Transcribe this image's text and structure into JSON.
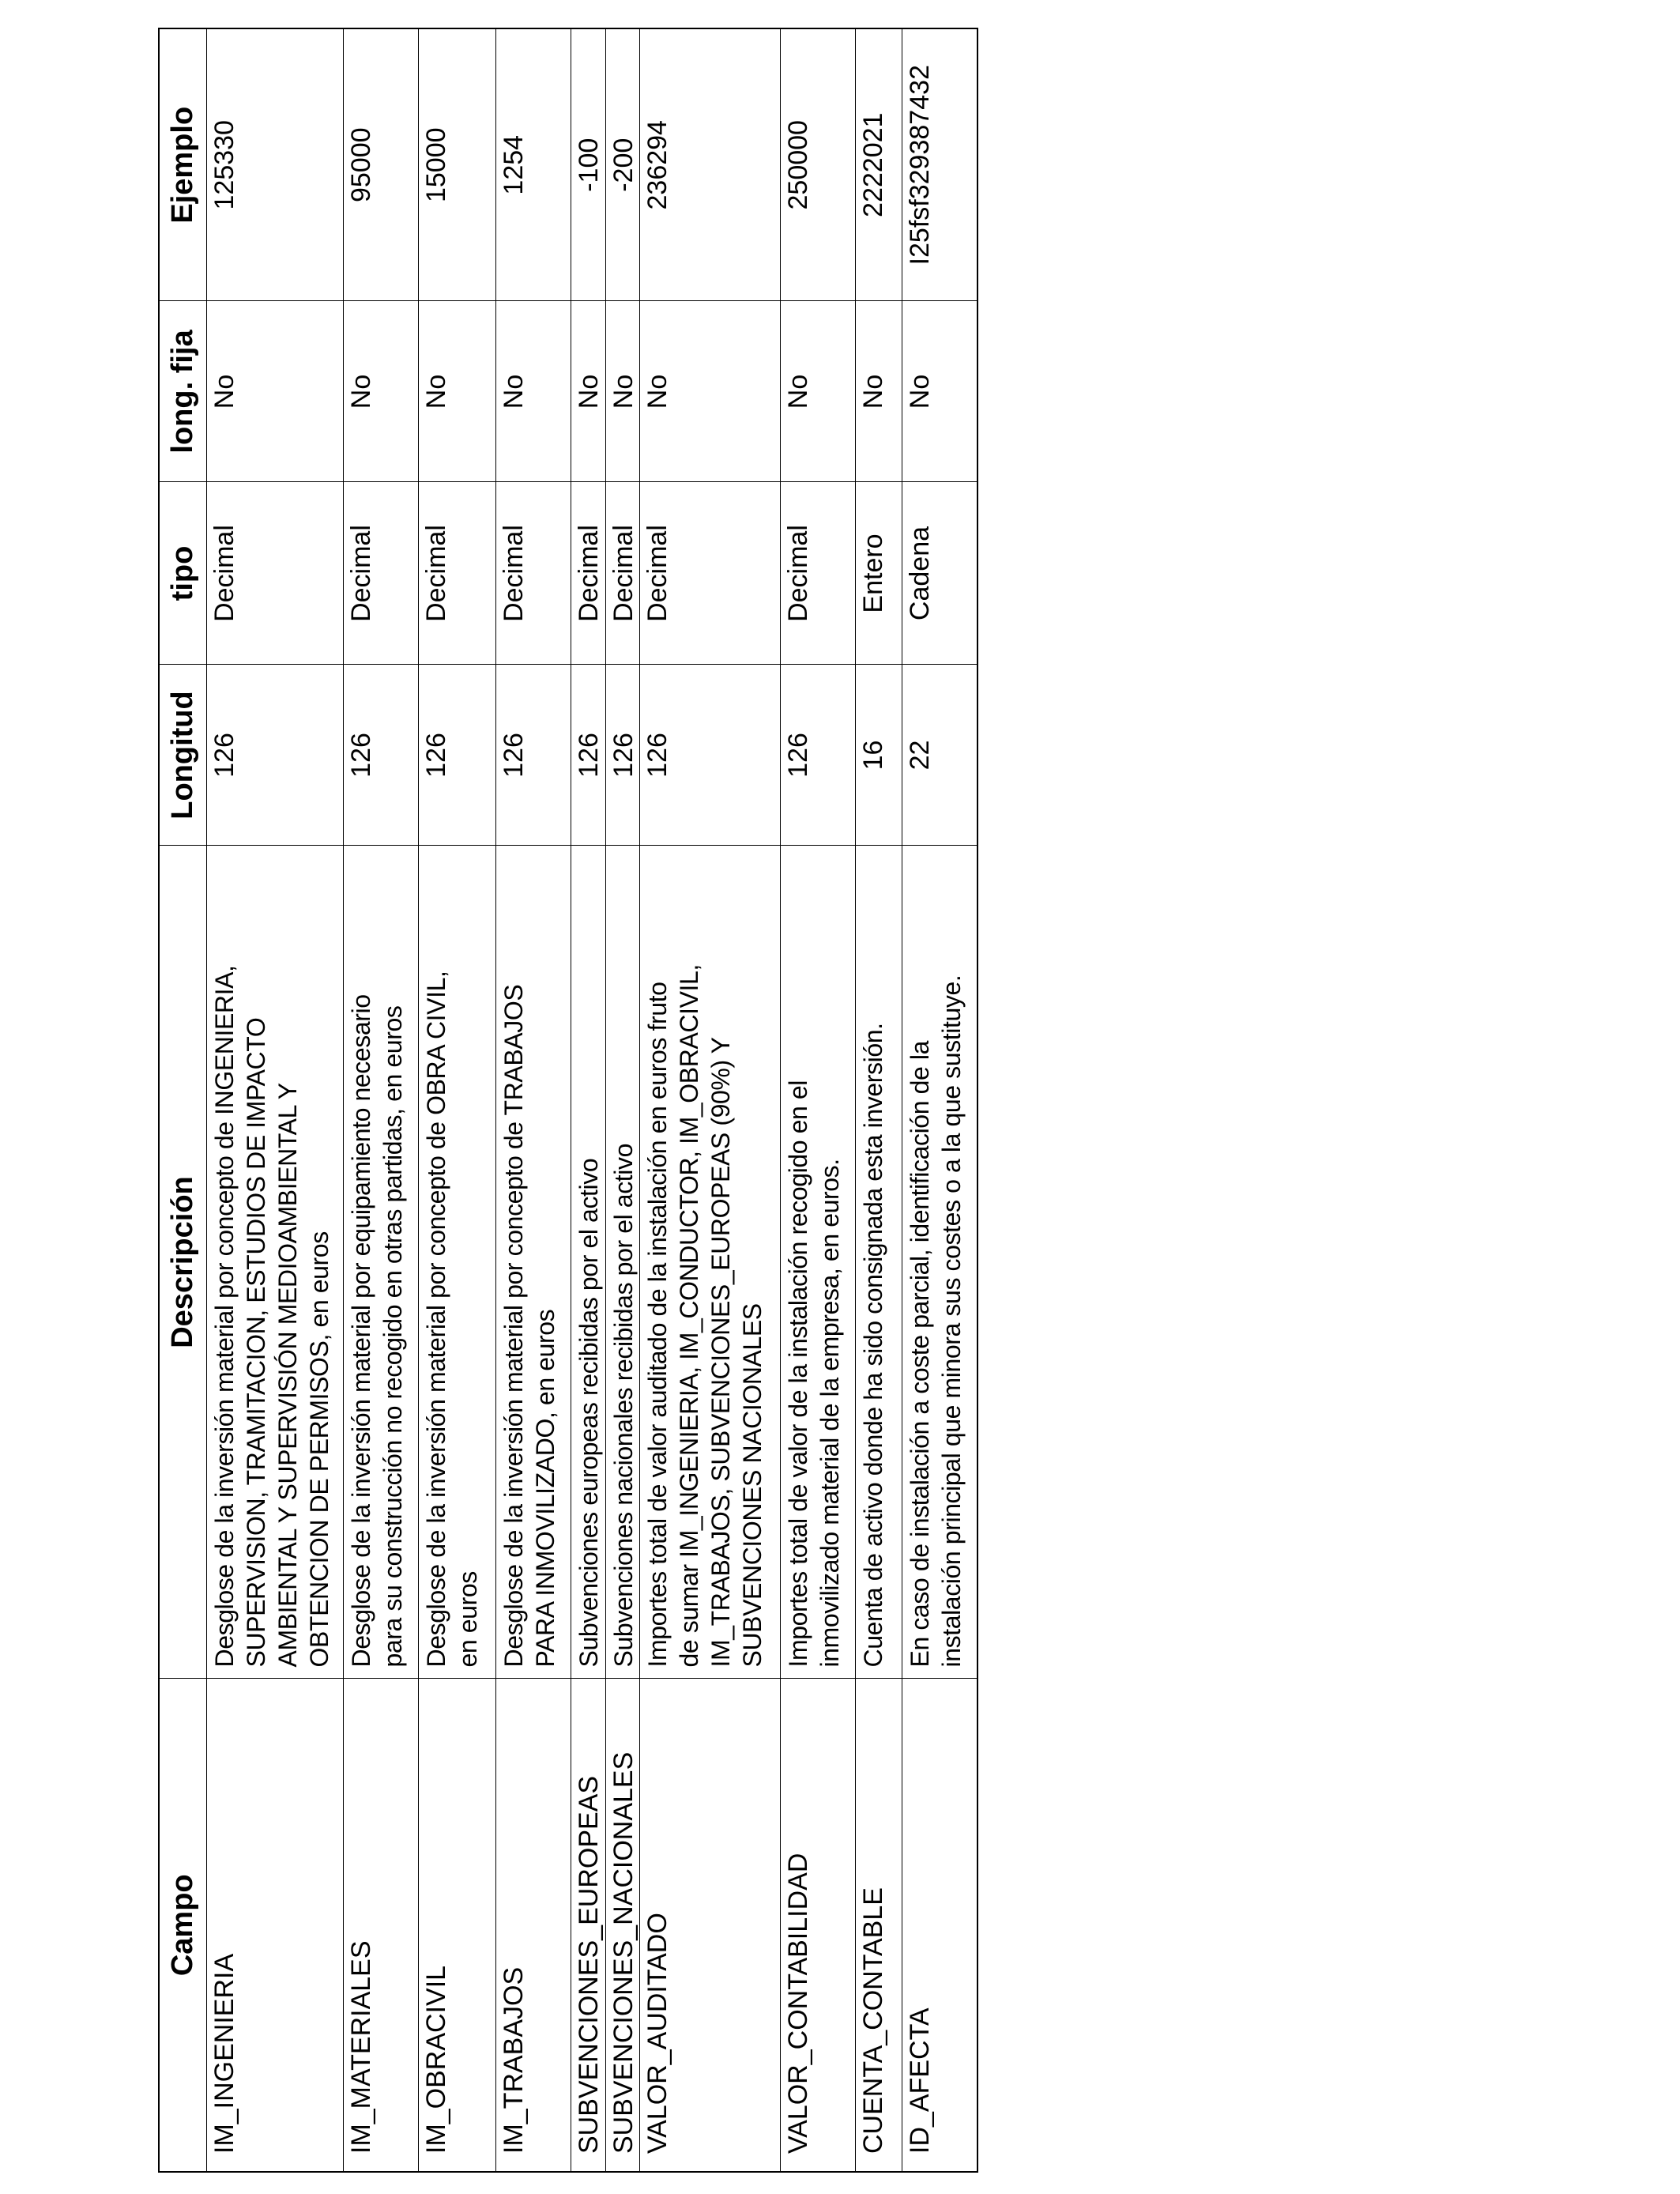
{
  "headers": {
    "campo": "Campo",
    "descripcion": "Descripción",
    "longitud": "Longitud",
    "tipo": "tipo",
    "long_fija": "long. fija",
    "ejemplo": "Ejemplo"
  },
  "rows": [
    {
      "campo": "IM_INGENIERIA",
      "descripcion": [
        "Desglose de la inversión material por concepto de  INGENIERIA,",
        "SUPERVISION, TRAMITACION, ESTUDIOS DE IMPACTO",
        "AMBIENTAL Y SUPERVISIÓN MEDIOAMBIENTAL Y",
        "OBTENCION DE PERMISOS, en euros"
      ],
      "longitud": "126",
      "tipo": "Decimal",
      "long_fija": "No",
      "ejemplo": "125330"
    },
    {
      "campo": "IM_MATERIALES",
      "descripcion": [
        "Desglose de la inversión material por equipamiento necesario",
        "para su construcción no recogido en otras partidas, en euros"
      ],
      "longitud": "126",
      "tipo": "Decimal",
      "long_fija": "No",
      "ejemplo": "95000"
    },
    {
      "campo": "IM_OBRACIVIL",
      "descripcion": [
        "Desglose de la inversión material por concepto de OBRA CIVIL,",
        "en euros"
      ],
      "longitud": "126",
      "tipo": "Decimal",
      "long_fija": "No",
      "ejemplo": "15000"
    },
    {
      "campo": "IM_TRABAJOS",
      "descripcion": [
        "Desglose de la inversión material por concepto de TRABAJOS",
        "PARA INMOVILIZADO, en euros"
      ],
      "longitud": "126",
      "tipo": "Decimal",
      "long_fija": "No",
      "ejemplo": "1254"
    },
    {
      "campo": "SUBVENCIONES_EUROPEAS",
      "descripcion": [
        "Subvenciones europeas recibidas por el activo"
      ],
      "longitud": "126",
      "tipo": "Decimal",
      "long_fija": "No",
      "ejemplo": "-100"
    },
    {
      "campo": "SUBVENCIONES_NACIONALES",
      "descripcion": [
        "Subvenciones nacionales recibidas por el activo"
      ],
      "longitud": "126",
      "tipo": "Decimal",
      "long_fija": "No",
      "ejemplo": "-200"
    },
    {
      "campo": "VALOR_AUDITADO",
      "descripcion": [
        "Importes total de valor auditado de la instalación en euros fruto",
        "de sumar IM_INGENIERIA, IM_CONDUCTOR, IM_OBRACIVIL,",
        "IM_TRABAJOS, SUBVENCIONES_EUROPEAS (90%) Y",
        "SUBVENCIONES NACIONALES"
      ],
      "longitud": "126",
      "tipo": "Decimal",
      "long_fija": "No",
      "ejemplo": "236294"
    },
    {
      "campo": "VALOR_CONTABILIDAD",
      "descripcion": [
        "Importes total de valor de la instalación recogido en el",
        "inmovilizado material de la empresa, en euros."
      ],
      "longitud": "126",
      "tipo": "Decimal",
      "long_fija": "No",
      "ejemplo": "250000"
    },
    {
      "campo": "CUENTA_CONTABLE",
      "descripcion": [
        "Cuenta de activo donde ha sido consignada esta inversión."
      ],
      "longitud": "16",
      "tipo": "Entero",
      "long_fija": "No",
      "ejemplo": "2222021"
    },
    {
      "campo": "ID_AFECTA",
      "descripcion": [
        "En caso de instalación a coste parcial, identificación de la",
        "instalación principal que minora sus costes o a la que sustituye."
      ],
      "longitud": "22",
      "tipo": "Cadena",
      "long_fija": "No",
      "ejemplo": "I25fsf329387432"
    }
  ]
}
